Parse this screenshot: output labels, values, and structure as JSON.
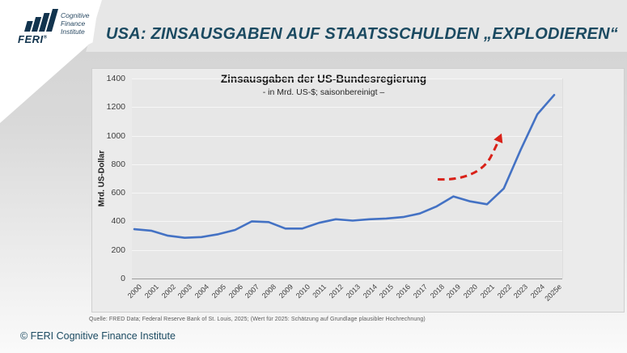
{
  "header": {
    "title": "USA: ZINSAUSGABEN AUF STAATSSCHULDEN „EXPLODIEREN“",
    "logo": {
      "brand": "FERI",
      "brand_mark": "®",
      "tagline_lines": [
        "Cognitive",
        "Finance",
        "Institute"
      ]
    }
  },
  "chart_data": {
    "type": "line",
    "title": "Zinsausgaben der US-Bundesregierung",
    "subtitle": "- in Mrd. US-$; saisonbereinigt –",
    "ylabel": "Mrd. US-Dollar",
    "ylim": [
      0,
      1400
    ],
    "yticks": [
      0,
      200,
      400,
      600,
      800,
      1000,
      1200,
      1400
    ],
    "grid": true,
    "legend_position": "none",
    "categories": [
      "2000",
      "2001",
      "2002",
      "2003",
      "2004",
      "2005",
      "2006",
      "2007",
      "2008",
      "2009",
      "2010",
      "2011",
      "2012",
      "2013",
      "2014",
      "2015",
      "2016",
      "2017",
      "2018",
      "2019",
      "2020",
      "2021",
      "2022",
      "2023",
      "2024",
      "2025e"
    ],
    "series": [
      {
        "name": "Zinsausgaben der US-Bundesregierung (Mrd. US-$)",
        "color": "#4472c4",
        "values": [
          345,
          335,
          300,
          285,
          290,
          310,
          340,
          400,
          395,
          350,
          350,
          390,
          415,
          405,
          415,
          420,
          430,
          455,
          505,
          575,
          540,
          520,
          630,
          900,
          1150,
          1285
        ]
      }
    ],
    "annotation": {
      "shape": "curved-dashed-arrow",
      "color": "#d92118",
      "approx_start": {
        "year": "2018",
        "value": 700
      },
      "approx_end": {
        "year": "2022",
        "value": 1000
      }
    }
  },
  "source_note": "Quelle: FRED Data; Federal Reserve Bank of St. Louis, 2025; (Wert für 2025: Schätzung auf Grundlage plausibler Hochrechnung)",
  "footer": {
    "copyright": "© FERI Cognitive Finance Institute"
  },
  "colors": {
    "title_text": "#1b4a61",
    "line": "#4472c4",
    "arrow": "#d92118",
    "panel_bg": "#ebebeb",
    "plot_bg": "#e7e7e7",
    "band_bg": "#e7e7e7",
    "logo_navy": "#12344e"
  }
}
